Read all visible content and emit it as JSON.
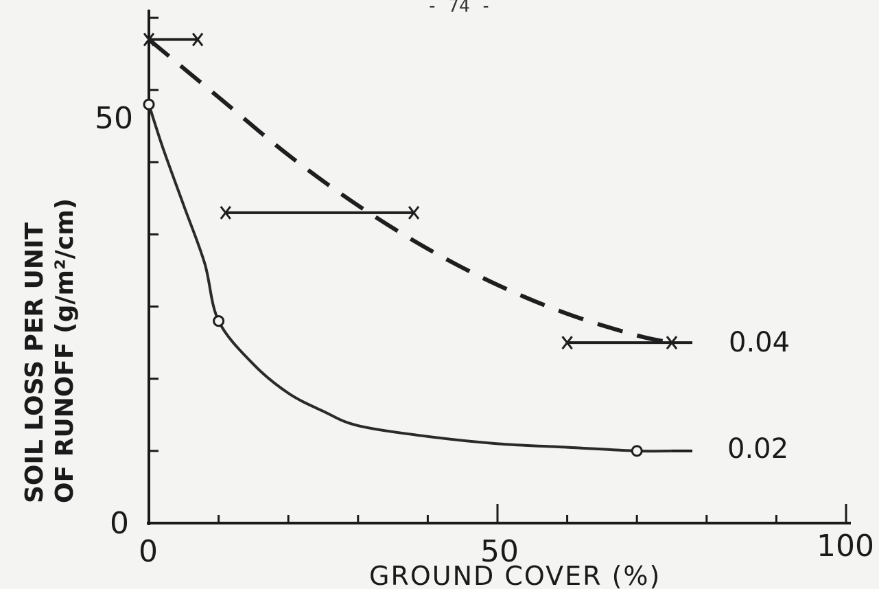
{
  "page_number": "- 74 -",
  "chart_data": {
    "type": "line",
    "title": "",
    "xlabel": "GROUND COVER (%)",
    "ylabel_line1": "SOIL LOSS PER UNIT",
    "ylabel_line2": "OF RUNOFF (g/m²/cm)",
    "xlim": [
      0,
      100
    ],
    "ylim": [
      0,
      70
    ],
    "x_ticks": [
      {
        "value": 0,
        "label": "0"
      },
      {
        "value": 50,
        "label": "50"
      },
      {
        "value": 100,
        "label": "100"
      }
    ],
    "y_ticks": [
      {
        "value": 0,
        "label": "0"
      },
      {
        "value": 50,
        "label": "50"
      }
    ],
    "series": [
      {
        "name": "0.04",
        "style": "dashed",
        "x": [
          0,
          10,
          20,
          30,
          40,
          50,
          60,
          70,
          75
        ],
        "y": [
          67,
          59,
          51,
          44,
          38,
          33,
          29,
          26,
          25
        ],
        "bars": [
          {
            "x_from": 0,
            "x_to": 7,
            "y": 67
          },
          {
            "x_from": 11,
            "x_to": 38,
            "y": 43
          },
          {
            "x_from": 60,
            "x_to": 75,
            "y": 25
          }
        ]
      },
      {
        "name": "0.02",
        "style": "solid",
        "x": [
          0,
          2,
          5,
          8,
          10,
          15,
          20,
          25,
          30,
          40,
          50,
          60,
          70,
          75
        ],
        "y": [
          58,
          52,
          44,
          36,
          28,
          22,
          18,
          15.5,
          13.5,
          12,
          11,
          10.5,
          10,
          10
        ],
        "points": [
          {
            "x": 0,
            "y": 58
          },
          {
            "x": 10,
            "y": 28
          },
          {
            "x": 70,
            "y": 10
          }
        ]
      }
    ]
  }
}
